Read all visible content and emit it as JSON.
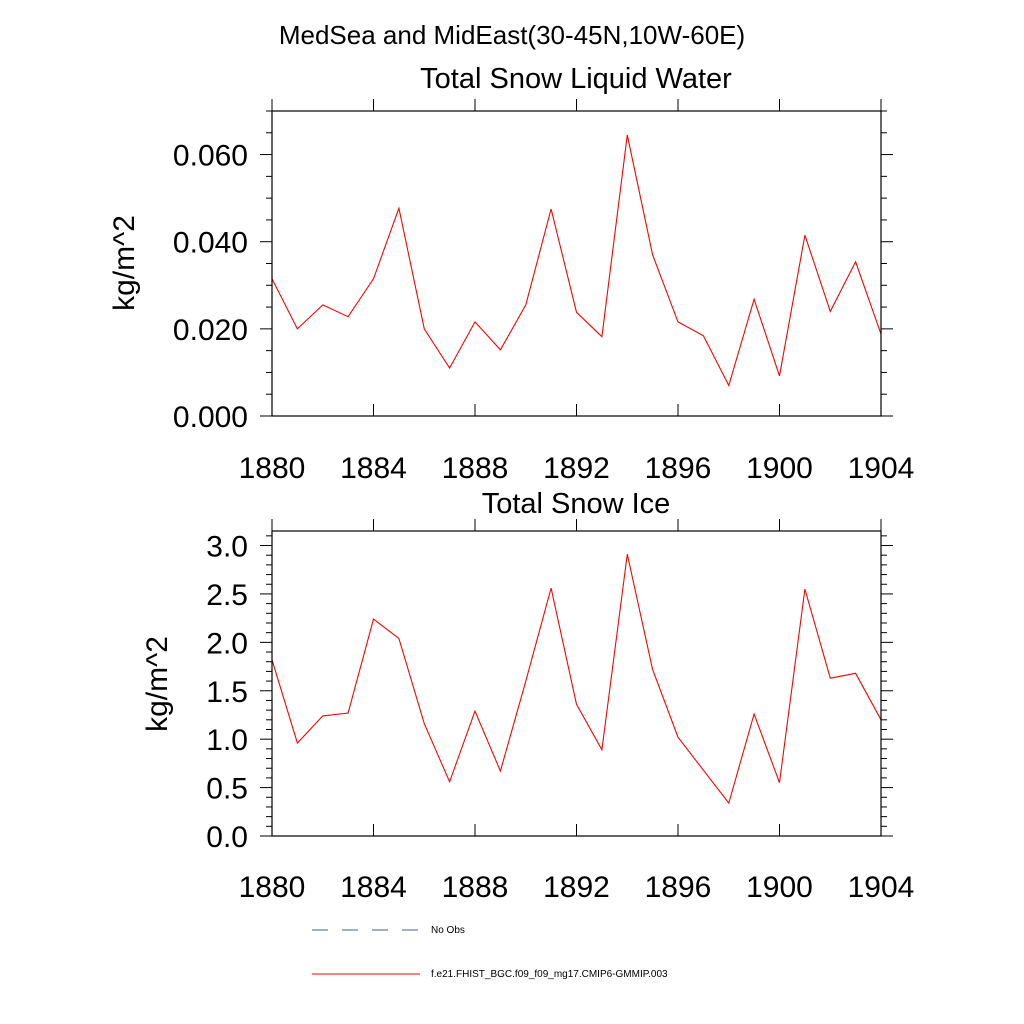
{
  "figure": {
    "suptitle": "MedSea and MidEast(30-45N,10W-60E)"
  },
  "chart_data": [
    {
      "type": "line",
      "title": "Total Snow Liquid Water",
      "xlabel": "",
      "ylabel": "kg/m^2",
      "xlim": [
        1880,
        1904
      ],
      "ylim": [
        0,
        0.07
      ],
      "xticks": [
        1880,
        1884,
        1888,
        1892,
        1896,
        1900,
        1904
      ],
      "xtick_labels": [
        "1880",
        "1884",
        "1888",
        "1892",
        "1896",
        "1900",
        "1904"
      ],
      "yticks": [
        0,
        0.02,
        0.04,
        0.06
      ],
      "ytick_labels": [
        "0.000",
        "0.020",
        "0.040",
        "0.060"
      ],
      "y_minor_step": 0.005,
      "grid": false,
      "series": [
        {
          "name": "f.e21.FHIST_BGC.f09_f09_mg17.CMIP6-GMMIP.003",
          "color": "#ff0000",
          "x": [
            1880,
            1881,
            1882,
            1883,
            1884,
            1885,
            1886,
            1887,
            1888,
            1889,
            1890,
            1891,
            1892,
            1893,
            1894,
            1895,
            1896,
            1897,
            1898,
            1899,
            1900,
            1901,
            1902,
            1903,
            1904
          ],
          "values": [
            0.0315,
            0.02,
            0.0255,
            0.0228,
            0.0315,
            0.0477,
            0.02,
            0.011,
            0.0216,
            0.0152,
            0.0255,
            0.0475,
            0.0238,
            0.0182,
            0.0645,
            0.037,
            0.0216,
            0.0184,
            0.007,
            0.0268,
            0.0092,
            0.0415,
            0.024,
            0.0354,
            0.0188
          ]
        }
      ]
    },
    {
      "type": "line",
      "title": "Total Snow Ice",
      "xlabel": "",
      "ylabel": "kg/m^2",
      "xlim": [
        1880,
        1904
      ],
      "ylim": [
        0,
        3.15
      ],
      "xticks": [
        1880,
        1884,
        1888,
        1892,
        1896,
        1900,
        1904
      ],
      "xtick_labels": [
        "1880",
        "1884",
        "1888",
        "1892",
        "1896",
        "1900",
        "1904"
      ],
      "yticks": [
        0,
        0.5,
        1.0,
        1.5,
        2.0,
        2.5,
        3.0
      ],
      "ytick_labels": [
        "0.0",
        "0.5",
        "1.0",
        "1.5",
        "2.0",
        "2.5",
        "3.0"
      ],
      "y_minor_step": 0.1,
      "grid": false,
      "series": [
        {
          "name": "f.e21.FHIST_BGC.f09_f09_mg17.CMIP6-GMMIP.003",
          "color": "#ff0000",
          "x": [
            1880,
            1881,
            1882,
            1883,
            1884,
            1885,
            1886,
            1887,
            1888,
            1889,
            1890,
            1891,
            1892,
            1893,
            1894,
            1895,
            1896,
            1897,
            1898,
            1899,
            1900,
            1901,
            1902,
            1903,
            1904
          ],
          "values": [
            1.82,
            0.96,
            1.24,
            1.27,
            2.24,
            2.04,
            1.16,
            0.56,
            1.29,
            0.67,
            1.6,
            2.56,
            1.36,
            0.89,
            2.91,
            1.72,
            1.02,
            0.68,
            0.34,
            1.26,
            0.55,
            2.55,
            1.63,
            1.68,
            1.2
          ]
        }
      ]
    }
  ],
  "legend": {
    "placement": "bottom-center",
    "entries": [
      {
        "label": "No Obs",
        "style": "dashed",
        "color": "#4b5a8c"
      },
      {
        "label": "f.e21.FHIST_BGC.f09_f09_mg17.CMIP6-GMMIP.003",
        "style": "solid",
        "color": "#ff0000"
      }
    ]
  }
}
